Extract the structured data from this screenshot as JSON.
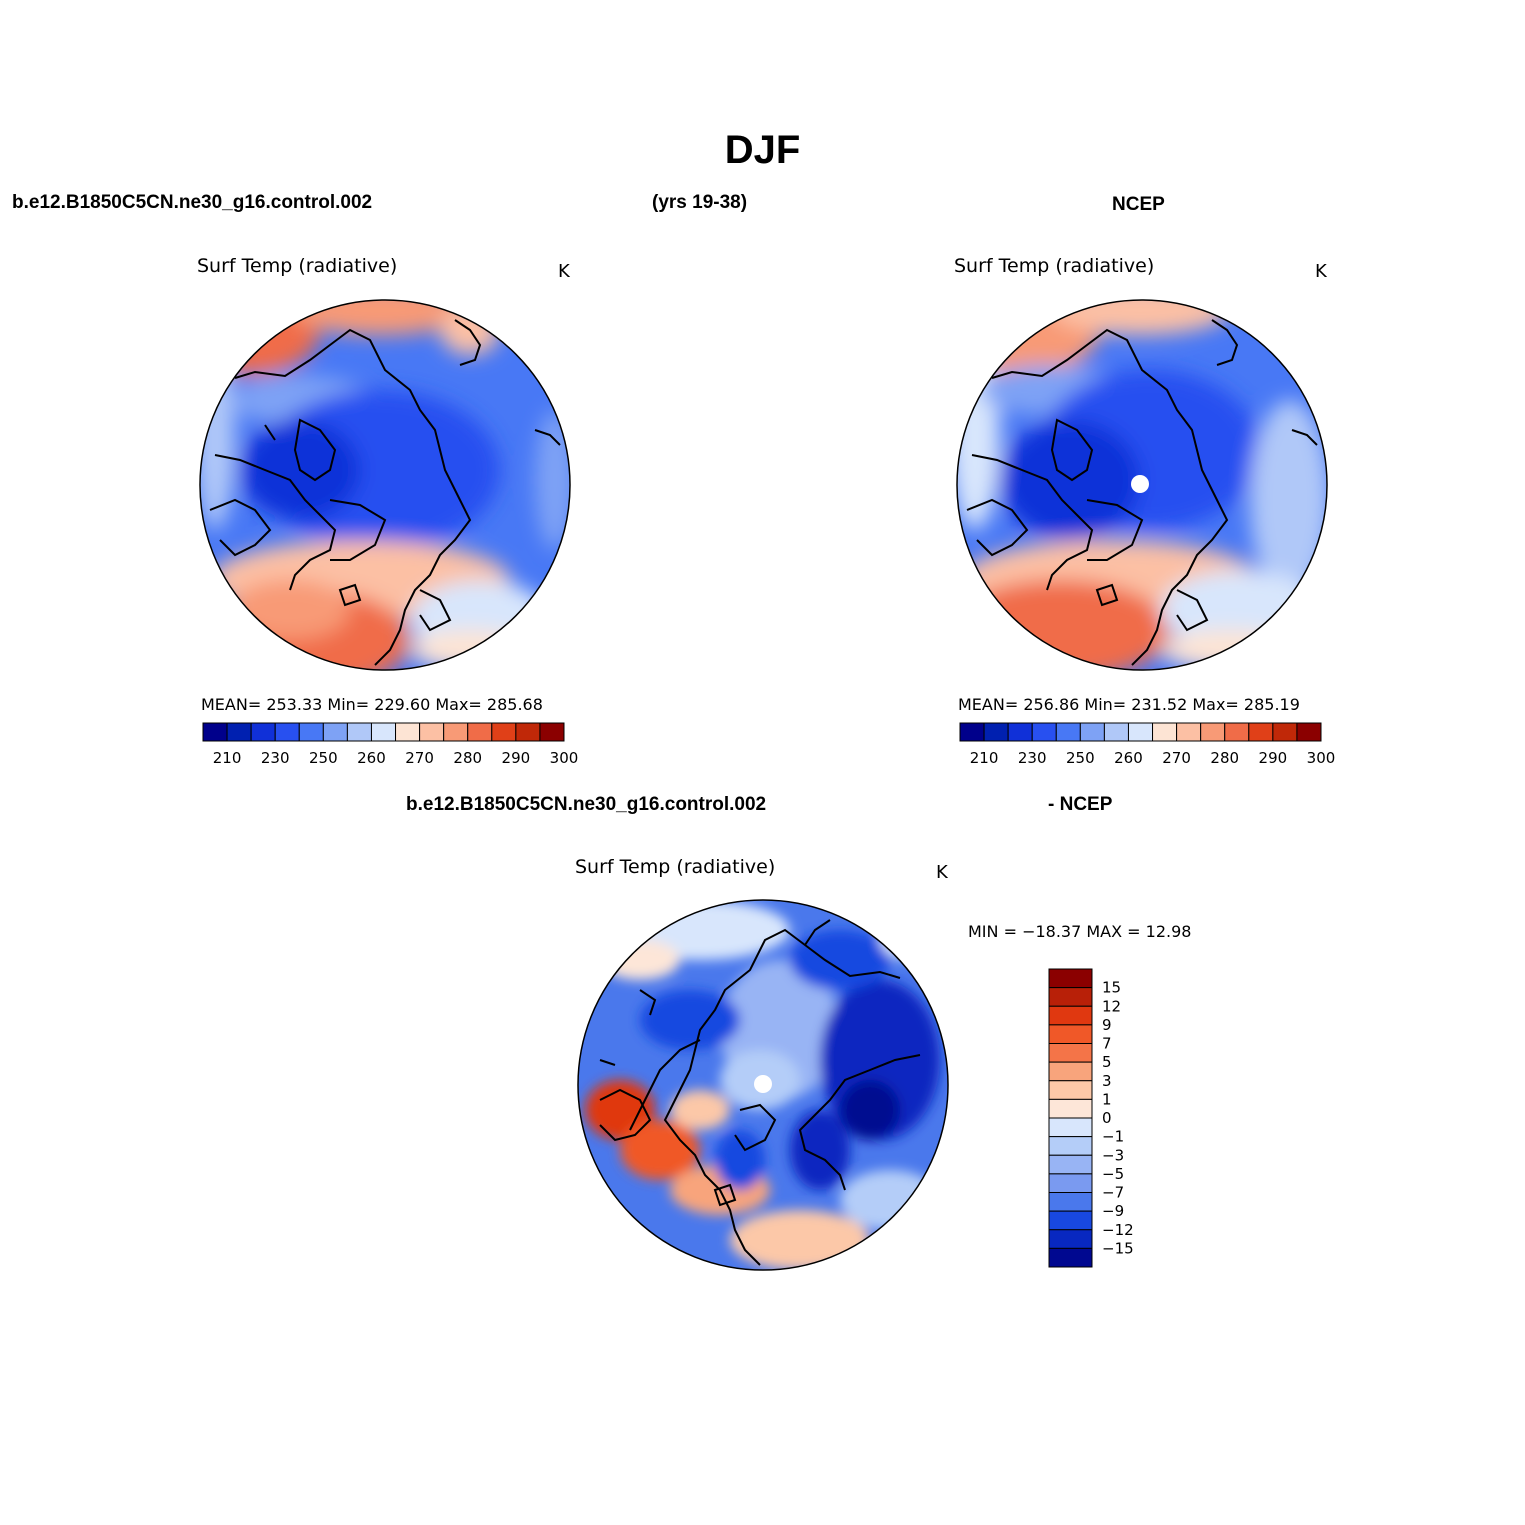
{
  "title": "DJF",
  "header": {
    "case_name": "b.e12.B1850C5CN.ne30_g16.control.002",
    "years": "(yrs 19-38)",
    "obs_name": "NCEP"
  },
  "diff_header": {
    "case_name": "b.e12.B1850C5CN.ne30_g16.control.002",
    "obs_name": "- NCEP"
  },
  "panels": {
    "model": {
      "variable": "Surf Temp (radiative)",
      "unit": "K",
      "stats": "MEAN= 253.33   Min= 229.60   Max= 285.68"
    },
    "obs": {
      "variable": "Surf Temp (radiative)",
      "unit": "K",
      "stats": "MEAN= 256.86   Min= 231.52   Max= 285.19"
    },
    "diff": {
      "variable": "Surf Temp (radiative)",
      "unit": "K",
      "stats": "MIN = −18.37  MAX =   12.98"
    }
  },
  "colorbar_abs": {
    "colors": [
      "#00008b",
      "#0020b0",
      "#1030d8",
      "#2850f0",
      "#4878f5",
      "#7ea2f5",
      "#b0c8f8",
      "#d8e6fc",
      "#fde4d4",
      "#fcc0a4",
      "#f89a76",
      "#f06c48",
      "#e04018",
      "#c02808",
      "#8b0000"
    ],
    "labels": [
      "210",
      "230",
      "250",
      "260",
      "270",
      "280",
      "290",
      "300"
    ]
  },
  "colorbar_diff": {
    "colors": [
      "#8b0000",
      "#b82008",
      "#e03810",
      "#f05828",
      "#f47448",
      "#f8a47c",
      "#fcc8a8",
      "#fde6d8",
      "#d8e6fc",
      "#b4cdf8",
      "#98b4f4",
      "#7a9af0",
      "#4a78ec",
      "#1848e0",
      "#0828c0",
      "#000890"
    ],
    "labels": [
      "15",
      "12",
      "9",
      "7",
      "5",
      "3",
      "1",
      "0",
      "−1",
      "−3",
      "−5",
      "−7",
      "−9",
      "−12",
      "−15"
    ]
  }
}
